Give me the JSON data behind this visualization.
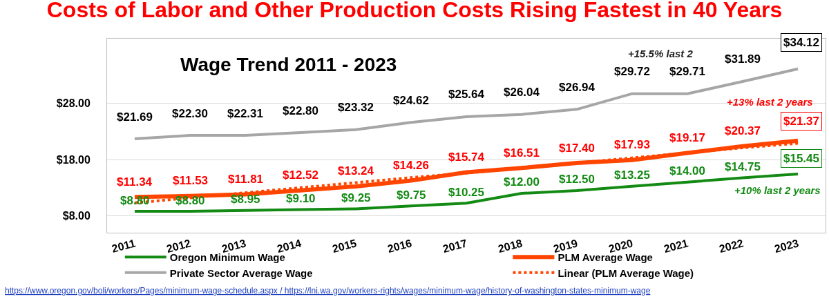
{
  "chart_data": {
    "type": "line",
    "title": "Costs of Labor and Other Production Costs Rising Fastest in 40 Years",
    "subtitle": "Wage Trend 2011 - 2023",
    "categories": [
      "2011",
      "2012",
      "2013",
      "2014",
      "2015",
      "2016",
      "2017",
      "2018",
      "2019",
      "2020",
      "2021",
      "2022",
      "2023"
    ],
    "series": [
      {
        "name": "Oregon Minimum Wage",
        "color": "#138a13",
        "values": [
          8.8,
          8.8,
          8.95,
          9.1,
          9.25,
          9.75,
          10.25,
          12.0,
          12.5,
          13.25,
          14.0,
          14.75,
          15.45
        ],
        "value_labels": [
          "$8.80",
          "$8.80",
          "$8.95",
          "$9.10",
          "$9.25",
          "$9.75",
          "$10.25",
          "$12.00",
          "$12.50",
          "$13.25",
          "$14.00",
          "$14.75",
          "$15.45"
        ]
      },
      {
        "name": "PLM Average Wage",
        "color": "#ff4500",
        "values": [
          11.34,
          11.53,
          11.81,
          12.52,
          13.24,
          14.26,
          15.74,
          16.51,
          17.4,
          17.93,
          19.17,
          20.37,
          21.37
        ],
        "value_labels": [
          "$11.34",
          "$11.53",
          "$11.81",
          "$12.52",
          "$13.24",
          "$14.26",
          "$15.74",
          "$16.51",
          "$17.40",
          "$17.93",
          "$19.17",
          "$20.37",
          "$21.37"
        ]
      },
      {
        "name": "Private Sector Average Wage",
        "color": "#a6a6a6",
        "values": [
          21.69,
          22.3,
          22.31,
          22.8,
          23.32,
          24.62,
          25.64,
          26.04,
          26.94,
          29.72,
          29.71,
          31.89,
          34.12
        ],
        "value_labels": [
          "$21.69",
          "$22.30",
          "$22.31",
          "$22.80",
          "$23.32",
          "$24.62",
          "$25.64",
          "$26.04",
          "$26.94",
          "$29.72",
          "$29.71",
          "$31.89",
          "$34.12"
        ]
      },
      {
        "name": "Linear (PLM Average Wage)",
        "type": "line",
        "color": "#ff4500",
        "line_style": "dotted",
        "values": [
          10.3,
          11.2,
          12.1,
          13.0,
          13.9,
          14.8,
          15.6,
          16.5,
          17.4,
          18.3,
          19.2,
          20.1,
          20.9
        ]
      }
    ],
    "ylim": [
      5,
      39.5
    ],
    "yticks": [
      {
        "value": 8,
        "label": "$8.00"
      },
      {
        "value": 18,
        "label": "$18.00"
      },
      {
        "value": 28,
        "label": "$28.00"
      }
    ],
    "grid": "y",
    "legend": "bottom",
    "line_style": "solid",
    "marker": "none",
    "annotations": [
      "+15.5% last 2",
      "+13% last 2 years",
      "+10% last 2 years",
      "https://www.oregon.gov/boli/workers/Pages/minimum-wage-schedule.aspx / https://lni.wa.gov/workers-rights/wages/minimum-wage/history-of-washington-states-minimum-wage"
    ]
  }
}
